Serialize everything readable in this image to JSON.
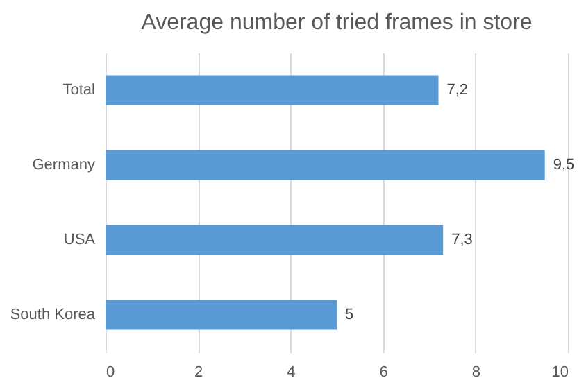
{
  "chart_data": {
    "type": "bar",
    "orientation": "horizontal",
    "title": "Average number of tried frames in store",
    "categories": [
      "Total",
      "Germany",
      "USA",
      "South Korea"
    ],
    "values": [
      7.2,
      9.5,
      7.3,
      5
    ],
    "value_labels": [
      "7,2",
      "9,5",
      "7,3",
      "5"
    ],
    "color": "#5b9bd5",
    "xlim": [
      0,
      10
    ],
    "xticks": [
      0,
      2,
      4,
      6,
      8,
      10
    ],
    "grid": "x"
  }
}
